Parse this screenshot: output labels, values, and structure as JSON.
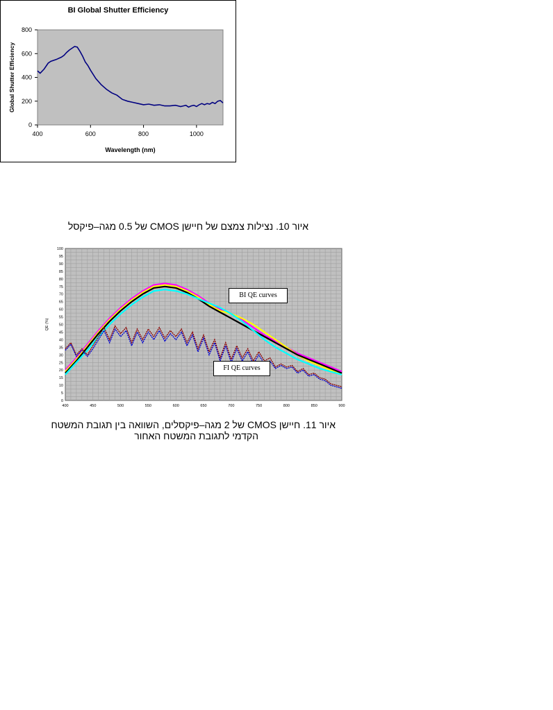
{
  "figure10": {
    "caption": "איור 10. נצילות צמצם של חיישן CMOS של 0.5 מגה–פיקסל"
  },
  "figure11": {
    "caption_line1": "איור 11. חיישן CMOS של 2 מגה–פיקסלים, השוואה בין תגובת המשטח",
    "caption_line2": "הקדמי לתגובת המשטח האחור"
  },
  "chart_data": [
    {
      "type": "line",
      "title": "BI Global Shutter Efficiency",
      "xlabel": "Wavelength (nm)",
      "ylabel": "Global Shutter Efficiency",
      "xlim": [
        400,
        1100
      ],
      "ylim": [
        0,
        800
      ],
      "xticks": [
        "400",
        "600",
        "800",
        "1000"
      ],
      "yticks": [
        "0",
        "200",
        "400",
        "600",
        "800"
      ],
      "grid": false,
      "background": "#c0c0c0",
      "series": [
        {
          "color": "#000080",
          "x": [
            400,
            410,
            425,
            440,
            450,
            470,
            490,
            500,
            510,
            520,
            530,
            540,
            550,
            560,
            570,
            580,
            590,
            600,
            620,
            640,
            660,
            680,
            700,
            720,
            740,
            760,
            780,
            800,
            820,
            840,
            860,
            880,
            900,
            920,
            940,
            950,
            960,
            970,
            980,
            990,
            1000,
            1010,
            1020,
            1030,
            1040,
            1050,
            1060,
            1070,
            1080,
            1090,
            1100
          ],
          "y": [
            455,
            435,
            470,
            520,
            535,
            550,
            570,
            585,
            610,
            630,
            645,
            660,
            655,
            620,
            580,
            530,
            500,
            460,
            390,
            340,
            300,
            270,
            250,
            215,
            200,
            190,
            180,
            170,
            175,
            165,
            170,
            160,
            160,
            165,
            155,
            160,
            165,
            150,
            160,
            165,
            155,
            170,
            180,
            170,
            180,
            175,
            190,
            180,
            200,
            205,
            185
          ]
        }
      ]
    },
    {
      "type": "line",
      "title": "",
      "xlabel": "",
      "ylabel": "QE (%)",
      "xlim": [
        400,
        900
      ],
      "ylim": [
        0,
        100
      ],
      "xticks": [
        "400",
        "450",
        "500",
        "550",
        "600",
        "650",
        "700",
        "750",
        "800",
        "850",
        "900"
      ],
      "yticks": [
        "0",
        "5",
        "10",
        "15",
        "20",
        "25",
        "30",
        "35",
        "40",
        "45",
        "50",
        "55",
        "60",
        "65",
        "70",
        "75",
        "80",
        "85",
        "90",
        "95",
        "100"
      ],
      "grid": true,
      "background": "#c0c0c0",
      "annotations": [
        "BI QE curves",
        "FI QE curves"
      ],
      "series": [
        {
          "color": "#ff00ff",
          "x": [
            400,
            420,
            440,
            460,
            480,
            500,
            520,
            540,
            560,
            580,
            600,
            620,
            640,
            660,
            680,
            700,
            720,
            740,
            760,
            780,
            800,
            820,
            840,
            860,
            880,
            900
          ],
          "y": [
            20,
            28,
            37,
            46,
            54,
            61,
            67,
            72,
            76,
            77,
            76,
            73,
            69,
            64,
            60,
            57,
            53,
            48,
            43,
            39,
            35,
            31,
            28,
            25,
            22,
            19
          ]
        },
        {
          "color": "#ffff00",
          "x": [
            400,
            420,
            440,
            460,
            480,
            500,
            520,
            540,
            560,
            580,
            600,
            620,
            640,
            660,
            680,
            700,
            720,
            740,
            760,
            780,
            800,
            820,
            840,
            860,
            880,
            900
          ],
          "y": [
            19,
            27,
            36,
            45,
            53,
            60,
            66,
            71,
            75,
            76,
            75,
            72,
            68,
            63,
            59,
            57,
            54,
            50,
            45,
            40,
            35,
            30,
            26,
            23,
            20,
            17
          ]
        },
        {
          "color": "#000000",
          "x": [
            400,
            420,
            440,
            460,
            480,
            500,
            520,
            540,
            560,
            580,
            600,
            620,
            640,
            660,
            680,
            700,
            720,
            740,
            760,
            780,
            800,
            820,
            840,
            860,
            880,
            900
          ],
          "y": [
            18,
            26,
            35,
            44,
            52,
            59,
            65,
            70,
            74,
            75,
            74,
            71,
            67,
            62,
            58,
            54,
            50,
            46,
            42,
            38,
            34,
            30,
            27,
            24,
            21,
            18
          ]
        },
        {
          "color": "#00ffff",
          "x": [
            400,
            420,
            440,
            460,
            480,
            500,
            520,
            540,
            560,
            580,
            600,
            620,
            640,
            660,
            680,
            700,
            720,
            740,
            760,
            780,
            800,
            820,
            840,
            860,
            880,
            900
          ],
          "y": [
            17,
            25,
            33,
            42,
            50,
            57,
            63,
            68,
            72,
            73,
            72,
            70,
            67,
            64,
            61,
            57,
            52,
            46,
            40,
            35,
            31,
            27,
            24,
            21,
            19,
            17
          ]
        },
        {
          "color": "#8b0000",
          "x": [
            400,
            410,
            420,
            430,
            440,
            450,
            460,
            470,
            480,
            490,
            500,
            510,
            520,
            530,
            540,
            550,
            560,
            570,
            580,
            590,
            600,
            610,
            620,
            630,
            640,
            650,
            660,
            670,
            680,
            690,
            700,
            710,
            720,
            730,
            740,
            750,
            760,
            770,
            780,
            790,
            800,
            810,
            820,
            830,
            840,
            850,
            860,
            870,
            880,
            890,
            900
          ],
          "y": [
            34,
            38,
            30,
            34,
            30,
            36,
            42,
            48,
            40,
            49,
            44,
            48,
            38,
            47,
            40,
            47,
            42,
            48,
            41,
            46,
            42,
            47,
            38,
            45,
            34,
            43,
            32,
            40,
            28,
            38,
            27,
            36,
            28,
            34,
            26,
            32,
            26,
            28,
            22,
            24,
            22,
            23,
            19,
            21,
            17,
            18,
            15,
            14,
            11,
            10,
            9
          ]
        },
        {
          "color": "#0000cd",
          "x": [
            400,
            410,
            420,
            430,
            440,
            450,
            460,
            470,
            480,
            490,
            500,
            510,
            520,
            530,
            540,
            550,
            560,
            570,
            580,
            590,
            600,
            610,
            620,
            630,
            640,
            650,
            660,
            670,
            680,
            690,
            700,
            710,
            720,
            730,
            740,
            750,
            760,
            770,
            780,
            790,
            800,
            810,
            820,
            830,
            840,
            850,
            860,
            870,
            880,
            890,
            900
          ],
          "y": [
            33,
            37,
            29,
            33,
            29,
            34,
            40,
            46,
            38,
            47,
            42,
            46,
            36,
            45,
            38,
            45,
            40,
            46,
            39,
            44,
            40,
            45,
            36,
            43,
            32,
            41,
            30,
            38,
            26,
            36,
            25,
            34,
            26,
            32,
            24,
            30,
            24,
            26,
            21,
            23,
            21,
            22,
            18,
            20,
            16,
            17,
            14,
            13,
            10,
            9,
            8
          ]
        }
      ]
    }
  ]
}
